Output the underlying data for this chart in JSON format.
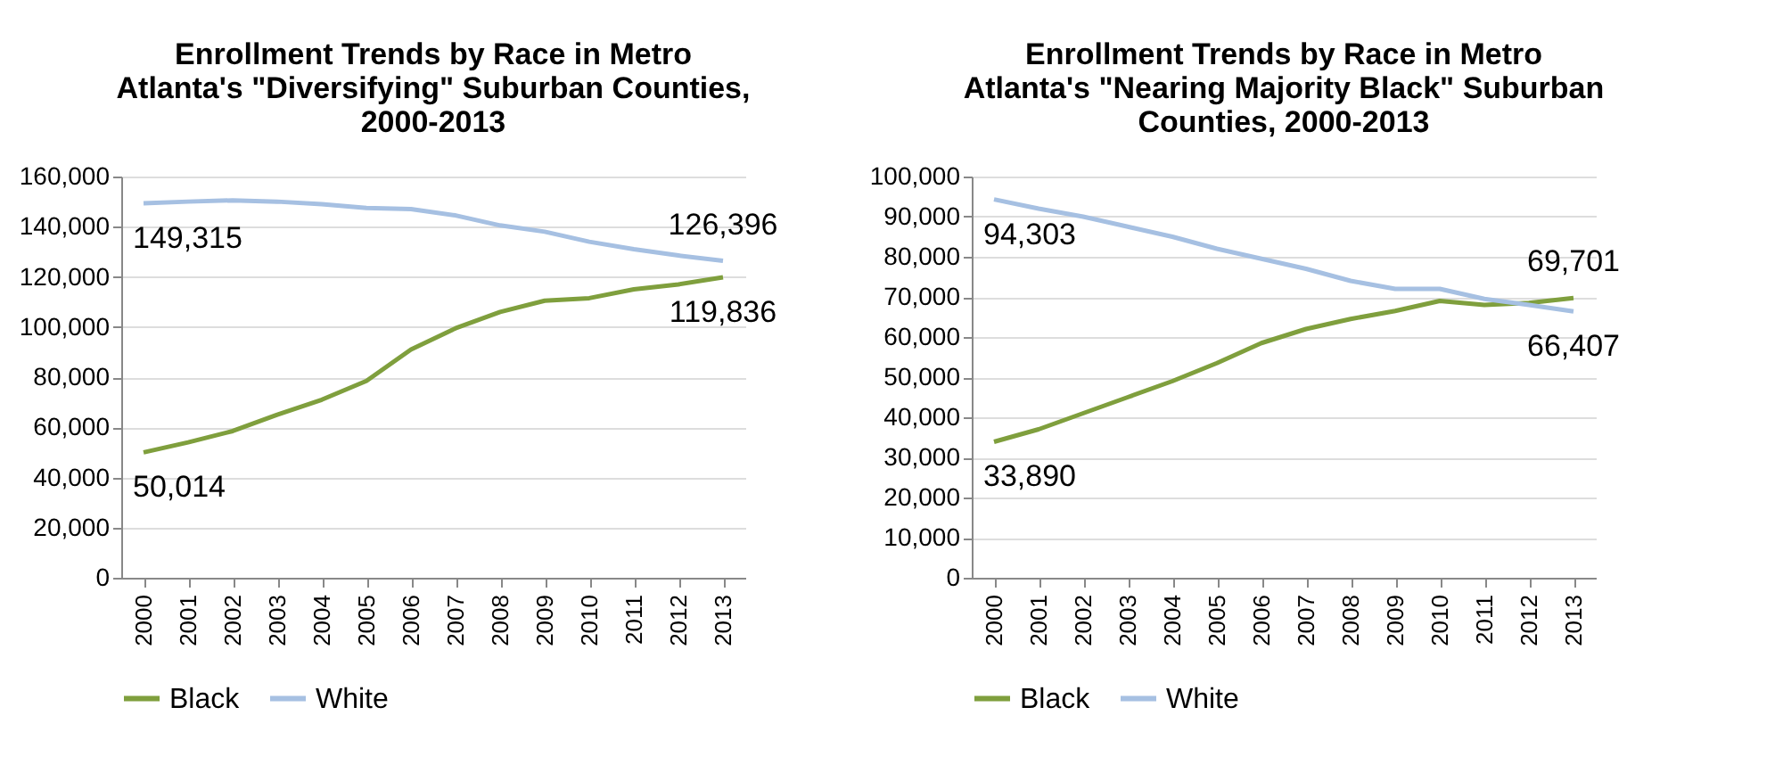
{
  "chart_data": [
    {
      "type": "line",
      "title": "Enrollment Trends by Race in Metro Atlanta's \"Diversifying\" Suburban Counties, 2000-2013",
      "categories": [
        "2000",
        "2001",
        "2002",
        "2003",
        "2004",
        "2005",
        "2006",
        "2007",
        "2008",
        "2009",
        "2010",
        "2011",
        "2012",
        "2013"
      ],
      "ylim": [
        0,
        160000
      ],
      "yticks": [
        0,
        {
          "value": 20000,
          "label": "20,000"
        },
        {
          "value": 40000,
          "label": "40,000"
        },
        {
          "value": 60000,
          "label": "60,000"
        },
        {
          "value": 80000,
          "label": "80,000"
        },
        {
          "value": 100000,
          "label": "100,000"
        },
        {
          "value": 120000,
          "label": "120,000"
        },
        {
          "value": 140000,
          "label": "140,000"
        },
        {
          "value": 160000,
          "label": "160,000"
        }
      ],
      "grid": "y",
      "legend": "bottom",
      "series": [
        {
          "name": "Black",
          "color": "#7f9f3d",
          "values": [
            50014,
            54000,
            58500,
            65000,
            71000,
            78500,
            91000,
            99500,
            106000,
            110500,
            111500,
            115000,
            117000,
            119836
          ],
          "value_labels": [
            "50,014",
            null,
            null,
            null,
            null,
            null,
            null,
            null,
            null,
            null,
            null,
            null,
            null,
            "119,836"
          ]
        },
        {
          "name": "White",
          "color": "#a6c0e2",
          "values": [
            149315,
            150000,
            150500,
            150000,
            149000,
            147500,
            147000,
            144500,
            140500,
            138000,
            134000,
            131000,
            128500,
            126396
          ],
          "value_labels": [
            "149,315",
            null,
            null,
            null,
            null,
            null,
            null,
            null,
            null,
            null,
            null,
            null,
            null,
            "126,396"
          ]
        }
      ]
    },
    {
      "type": "line",
      "title": "Enrollment Trends by Race in Metro Atlanta's \"Nearing Majority Black\" Suburban Counties, 2000-2013",
      "categories": [
        "2000",
        "2001",
        "2002",
        "2003",
        "2004",
        "2005",
        "2006",
        "2007",
        "2008",
        "2009",
        "2010",
        "2011",
        "2012",
        "2013"
      ],
      "ylim": [
        0,
        100000
      ],
      "yticks": [
        0,
        {
          "value": 10000,
          "label": "10,000"
        },
        {
          "value": 20000,
          "label": "20,000"
        },
        {
          "value": 30000,
          "label": "30,000"
        },
        {
          "value": 40000,
          "label": "40,000"
        },
        {
          "value": 50000,
          "label": "50,000"
        },
        {
          "value": 60000,
          "label": "60,000"
        },
        {
          "value": 70000,
          "label": "70,000"
        },
        {
          "value": 80000,
          "label": "80,000"
        },
        {
          "value": 90000,
          "label": "90,000"
        },
        {
          "value": 100000,
          "label": "100,000"
        }
      ],
      "grid": "y",
      "legend": "bottom",
      "series": [
        {
          "name": "Black",
          "color": "#7f9f3d",
          "values": [
            33890,
            37000,
            41000,
            45000,
            49000,
            53500,
            58500,
            62000,
            64500,
            66500,
            69000,
            68000,
            68500,
            69701
          ],
          "value_labels": [
            "33,890",
            null,
            null,
            null,
            null,
            null,
            null,
            null,
            null,
            null,
            null,
            null,
            null,
            "69,701"
          ]
        },
        {
          "name": "White",
          "color": "#a6c0e2",
          "values": [
            94303,
            92000,
            90000,
            87500,
            85000,
            82000,
            79500,
            77000,
            74000,
            72000,
            72000,
            69500,
            68000,
            66407
          ],
          "value_labels": [
            "94,303",
            null,
            null,
            null,
            null,
            null,
            null,
            null,
            null,
            null,
            null,
            null,
            null,
            "66,407"
          ]
        }
      ]
    }
  ]
}
